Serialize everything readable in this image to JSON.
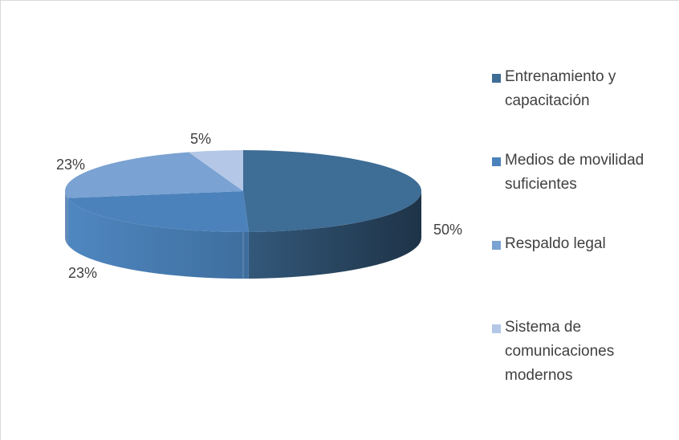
{
  "chart_data": {
    "type": "pie",
    "style": "3d",
    "categories": [
      "Entrenamiento y capacitación",
      "Medios de movilidad suficientes",
      "Respaldo legal",
      "Sistema de comunicaciones modernos"
    ],
    "values": [
      50,
      23,
      23,
      5
    ],
    "data_labels": [
      "50%",
      "23%",
      "23%",
      "5%"
    ],
    "colors": [
      "#3e6d96",
      "#4b82bb",
      "#7aa2d2",
      "#b4c7e6"
    ],
    "legend_position": "right"
  }
}
